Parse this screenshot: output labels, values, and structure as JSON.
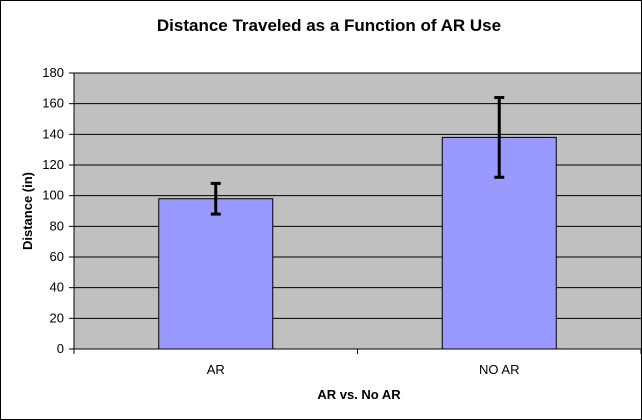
{
  "colors": {
    "plot_background": "#c0c0c0",
    "bar_fill": "#9999ff",
    "bar_stroke": "#000000",
    "gridline": "#000000",
    "error_bar": "#000000"
  },
  "chart_data": {
    "type": "bar",
    "title": "Distance Traveled as a Function of AR Use",
    "xlabel": "AR vs. No AR",
    "ylabel": "Distance (in)",
    "categories": [
      "AR",
      "NO AR"
    ],
    "values": [
      98,
      138
    ],
    "error_bars": [
      {
        "lower": 88,
        "upper": 108
      },
      {
        "lower": 112,
        "upper": 164
      }
    ],
    "ylim": [
      0,
      180
    ],
    "yticks": [
      0,
      20,
      40,
      60,
      80,
      100,
      120,
      140,
      160,
      180
    ],
    "grid": true,
    "legend": "none"
  }
}
